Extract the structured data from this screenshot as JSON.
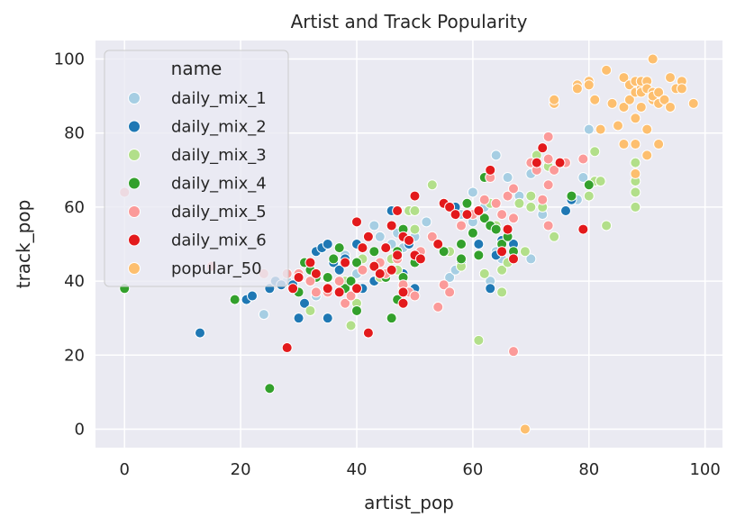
{
  "chart_data": {
    "type": "scatter",
    "title": "Artist and Track Popularity",
    "xlabel": "artist_pop",
    "ylabel": "track_pop",
    "xlim": [
      -5,
      103
    ],
    "ylim": [
      -5,
      105
    ],
    "xticks": [
      0,
      20,
      40,
      60,
      80,
      100
    ],
    "yticks": [
      0,
      20,
      40,
      60,
      80,
      100
    ],
    "grid": true,
    "legend": {
      "title": "name",
      "placement": "top-left"
    },
    "series": [
      {
        "name": "daily_mix_1",
        "color": "#a6cee3",
        "points": [
          [
            24,
            31
          ],
          [
            28,
            40
          ],
          [
            33,
            36
          ],
          [
            36,
            45
          ],
          [
            38,
            47
          ],
          [
            40,
            42
          ],
          [
            43,
            55
          ],
          [
            44,
            52
          ],
          [
            46,
            50
          ],
          [
            47,
            53
          ],
          [
            48,
            49
          ],
          [
            50,
            52
          ],
          [
            52,
            56
          ],
          [
            56,
            41
          ],
          [
            57,
            43
          ],
          [
            58,
            58
          ],
          [
            60,
            64
          ],
          [
            60,
            56
          ],
          [
            62,
            60
          ],
          [
            63,
            40
          ],
          [
            64,
            74
          ],
          [
            64,
            48
          ],
          [
            65,
            46
          ],
          [
            66,
            68
          ],
          [
            68,
            63
          ],
          [
            70,
            46
          ],
          [
            70,
            69
          ],
          [
            72,
            58
          ],
          [
            73,
            72
          ],
          [
            78,
            62
          ],
          [
            79,
            68
          ],
          [
            80,
            81
          ]
        ]
      },
      {
        "name": "daily_mix_2",
        "color": "#1f78b4",
        "points": [
          [
            13,
            26
          ],
          [
            21,
            35
          ],
          [
            22,
            36
          ],
          [
            25,
            38
          ],
          [
            26,
            40
          ],
          [
            27,
            39
          ],
          [
            29,
            39
          ],
          [
            30,
            30
          ],
          [
            31,
            34
          ],
          [
            32,
            40
          ],
          [
            33,
            48
          ],
          [
            34,
            49
          ],
          [
            35,
            50
          ],
          [
            35,
            30
          ],
          [
            36,
            45
          ],
          [
            37,
            43
          ],
          [
            38,
            46
          ],
          [
            40,
            50
          ],
          [
            41,
            38
          ],
          [
            42,
            52
          ],
          [
            43,
            40
          ],
          [
            45,
            49
          ],
          [
            46,
            59
          ],
          [
            47,
            47
          ],
          [
            48,
            42
          ],
          [
            49,
            50
          ],
          [
            50,
            38
          ],
          [
            55,
            61
          ],
          [
            57,
            60
          ],
          [
            58,
            45
          ],
          [
            60,
            53
          ],
          [
            61,
            50
          ],
          [
            63,
            38
          ],
          [
            64,
            47
          ],
          [
            65,
            51
          ],
          [
            67,
            50
          ],
          [
            76,
            59
          ],
          [
            77,
            62
          ]
        ]
      },
      {
        "name": "daily_mix_3",
        "color": "#b2df8a",
        "points": [
          [
            32,
            32
          ],
          [
            35,
            41
          ],
          [
            38,
            40
          ],
          [
            39,
            28
          ],
          [
            40,
            34
          ],
          [
            41,
            46
          ],
          [
            44,
            41
          ],
          [
            46,
            46
          ],
          [
            47,
            43
          ],
          [
            48,
            38
          ],
          [
            49,
            59
          ],
          [
            50,
            59
          ],
          [
            50,
            54
          ],
          [
            53,
            66
          ],
          [
            56,
            48
          ],
          [
            58,
            44
          ],
          [
            61,
            24
          ],
          [
            62,
            42
          ],
          [
            63,
            61
          ],
          [
            64,
            55
          ],
          [
            65,
            37
          ],
          [
            65,
            43
          ],
          [
            66,
            45
          ],
          [
            68,
            61
          ],
          [
            69,
            48
          ],
          [
            70,
            60
          ],
          [
            70,
            63
          ],
          [
            71,
            74
          ],
          [
            72,
            60
          ],
          [
            73,
            71
          ],
          [
            74,
            52
          ],
          [
            75,
            72
          ],
          [
            80,
            63
          ],
          [
            81,
            67
          ],
          [
            81,
            75
          ],
          [
            82,
            67
          ],
          [
            83,
            55
          ],
          [
            88,
            64
          ],
          [
            88,
            60
          ],
          [
            88,
            72
          ],
          [
            88,
            67
          ]
        ]
      },
      {
        "name": "daily_mix_4",
        "color": "#33a02c",
        "points": [
          [
            0,
            38
          ],
          [
            19,
            35
          ],
          [
            25,
            11
          ],
          [
            30,
            37
          ],
          [
            31,
            45
          ],
          [
            32,
            43
          ],
          [
            33,
            41
          ],
          [
            35,
            41
          ],
          [
            36,
            46
          ],
          [
            37,
            49
          ],
          [
            38,
            38
          ],
          [
            39,
            40
          ],
          [
            40,
            32
          ],
          [
            40,
            45
          ],
          [
            43,
            48
          ],
          [
            45,
            41
          ],
          [
            46,
            30
          ],
          [
            47,
            35
          ],
          [
            47,
            48
          ],
          [
            48,
            54
          ],
          [
            48,
            41
          ],
          [
            50,
            45
          ],
          [
            55,
            48
          ],
          [
            58,
            50
          ],
          [
            58,
            46
          ],
          [
            59,
            61
          ],
          [
            60,
            53
          ],
          [
            61,
            47
          ],
          [
            62,
            57
          ],
          [
            62,
            68
          ],
          [
            63,
            55
          ],
          [
            64,
            54
          ],
          [
            65,
            50
          ],
          [
            66,
            52
          ],
          [
            67,
            48
          ],
          [
            77,
            63
          ],
          [
            80,
            66
          ]
        ]
      },
      {
        "name": "daily_mix_5",
        "color": "#fb9a99",
        "points": [
          [
            0,
            64
          ],
          [
            15,
            44
          ],
          [
            24,
            42
          ],
          [
            28,
            42
          ],
          [
            30,
            42
          ],
          [
            32,
            40
          ],
          [
            33,
            37
          ],
          [
            35,
            37
          ],
          [
            37,
            40
          ],
          [
            38,
            34
          ],
          [
            39,
            36
          ],
          [
            40,
            38
          ],
          [
            41,
            43
          ],
          [
            44,
            45
          ],
          [
            45,
            42
          ],
          [
            47,
            46
          ],
          [
            48,
            39
          ],
          [
            49,
            37
          ],
          [
            50,
            36
          ],
          [
            51,
            48
          ],
          [
            53,
            52
          ],
          [
            54,
            33
          ],
          [
            55,
            39
          ],
          [
            56,
            37
          ],
          [
            58,
            55
          ],
          [
            60,
            58
          ],
          [
            62,
            62
          ],
          [
            63,
            68
          ],
          [
            64,
            61
          ],
          [
            65,
            58
          ],
          [
            66,
            63
          ],
          [
            67,
            21
          ],
          [
            67,
            65
          ],
          [
            67,
            57
          ],
          [
            70,
            72
          ],
          [
            71,
            70
          ],
          [
            72,
            62
          ],
          [
            73,
            79
          ],
          [
            73,
            73
          ],
          [
            73,
            66
          ],
          [
            73,
            55
          ],
          [
            74,
            70
          ],
          [
            76,
            72
          ],
          [
            79,
            73
          ]
        ]
      },
      {
        "name": "daily_mix_6",
        "color": "#e31a1c",
        "points": [
          [
            28,
            22
          ],
          [
            29,
            38
          ],
          [
            30,
            41
          ],
          [
            32,
            45
          ],
          [
            33,
            42
          ],
          [
            35,
            38
          ],
          [
            37,
            37
          ],
          [
            38,
            45
          ],
          [
            40,
            38
          ],
          [
            40,
            56
          ],
          [
            41,
            49
          ],
          [
            42,
            26
          ],
          [
            42,
            52
          ],
          [
            43,
            44
          ],
          [
            44,
            42
          ],
          [
            45,
            49
          ],
          [
            46,
            43
          ],
          [
            46,
            55
          ],
          [
            47,
            59
          ],
          [
            47,
            47
          ],
          [
            48,
            37
          ],
          [
            48,
            34
          ],
          [
            48,
            52
          ],
          [
            49,
            51
          ],
          [
            50,
            47
          ],
          [
            50,
            63
          ],
          [
            51,
            46
          ],
          [
            54,
            50
          ],
          [
            55,
            61
          ],
          [
            56,
            60
          ],
          [
            57,
            58
          ],
          [
            59,
            58
          ],
          [
            61,
            59
          ],
          [
            63,
            70
          ],
          [
            65,
            48
          ],
          [
            66,
            54
          ],
          [
            67,
            46
          ],
          [
            71,
            72
          ],
          [
            72,
            76
          ],
          [
            75,
            72
          ],
          [
            79,
            54
          ]
        ]
      },
      {
        "name": "popular_50",
        "color": "#fdbf6f",
        "points": [
          [
            69,
            0
          ],
          [
            74,
            88
          ],
          [
            74,
            89
          ],
          [
            78,
            93
          ],
          [
            78,
            92
          ],
          [
            80,
            94
          ],
          [
            80,
            93
          ],
          [
            81,
            89
          ],
          [
            82,
            81
          ],
          [
            83,
            97
          ],
          [
            84,
            88
          ],
          [
            85,
            82
          ],
          [
            86,
            95
          ],
          [
            86,
            87
          ],
          [
            86,
            77
          ],
          [
            87,
            93
          ],
          [
            87,
            89
          ],
          [
            88,
            91
          ],
          [
            88,
            84
          ],
          [
            88,
            94
          ],
          [
            88,
            77
          ],
          [
            88,
            69
          ],
          [
            89,
            92
          ],
          [
            89,
            94
          ],
          [
            89,
            91
          ],
          [
            89,
            87
          ],
          [
            90,
            81
          ],
          [
            90,
            74
          ],
          [
            90,
            94
          ],
          [
            90,
            92
          ],
          [
            91,
            91
          ],
          [
            91,
            100
          ],
          [
            91,
            89
          ],
          [
            91,
            90
          ],
          [
            92,
            88
          ],
          [
            92,
            77
          ],
          [
            92,
            91
          ],
          [
            93,
            89
          ],
          [
            94,
            95
          ],
          [
            94,
            87
          ],
          [
            95,
            92
          ],
          [
            96,
            94
          ],
          [
            96,
            92
          ],
          [
            98,
            88
          ]
        ]
      }
    ]
  }
}
